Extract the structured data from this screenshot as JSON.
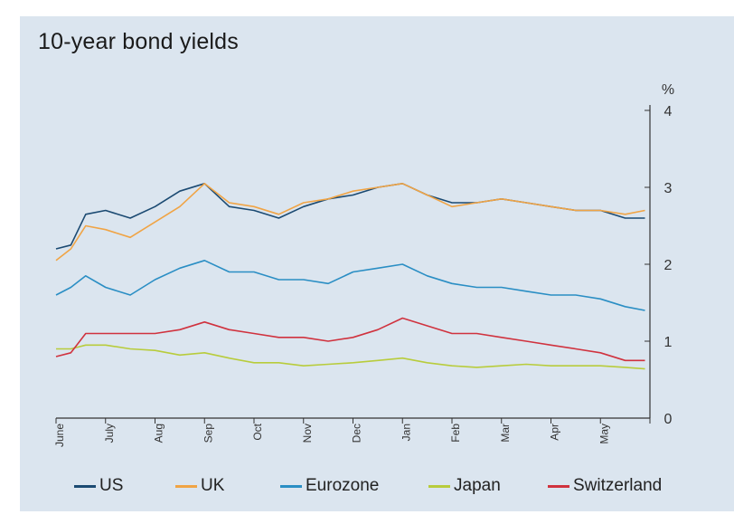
{
  "chart_data": {
    "type": "line",
    "title": "10-year bond yields",
    "ylabel": "%",
    "ylim": [
      0,
      4
    ],
    "yticks": [
      0,
      1,
      2,
      3,
      4
    ],
    "xlim": [
      0,
      12
    ],
    "month_labels": [
      "June",
      "July",
      "Aug",
      "Sep",
      "Oct",
      "Nov",
      "Dec",
      "Jan",
      "Feb",
      "Mar",
      "Apr",
      "May"
    ],
    "x": [
      0,
      0.3,
      0.6,
      1.0,
      1.5,
      2.0,
      2.5,
      3.0,
      3.5,
      4.0,
      4.5,
      5.0,
      5.5,
      6.0,
      6.5,
      7.0,
      7.5,
      8.0,
      8.5,
      9.0,
      9.5,
      10.0,
      10.5,
      11.0,
      11.5,
      11.9
    ],
    "series": [
      {
        "name": "US",
        "color": "#1b4a72",
        "values": [
          2.2,
          2.25,
          2.65,
          2.7,
          2.6,
          2.75,
          2.95,
          3.05,
          2.75,
          2.7,
          2.6,
          2.75,
          2.85,
          2.9,
          3.0,
          3.05,
          2.9,
          2.8,
          2.8,
          2.85,
          2.8,
          2.75,
          2.7,
          2.7,
          2.6,
          2.6
        ]
      },
      {
        "name": "UK",
        "color": "#f0a445",
        "values": [
          2.05,
          2.2,
          2.5,
          2.45,
          2.35,
          2.55,
          2.75,
          3.05,
          2.8,
          2.75,
          2.65,
          2.8,
          2.85,
          2.95,
          3.0,
          3.05,
          2.9,
          2.75,
          2.8,
          2.85,
          2.8,
          2.75,
          2.7,
          2.7,
          2.65,
          2.7
        ]
      },
      {
        "name": "Eurozone",
        "color": "#2a8ec4",
        "values": [
          1.6,
          1.7,
          1.85,
          1.7,
          1.6,
          1.8,
          1.95,
          2.05,
          1.9,
          1.9,
          1.8,
          1.8,
          1.75,
          1.9,
          1.95,
          2.0,
          1.85,
          1.75,
          1.7,
          1.7,
          1.65,
          1.6,
          1.6,
          1.55,
          1.45,
          1.4
        ]
      },
      {
        "name": "Japan",
        "color": "#b8cc3c",
        "values": [
          0.9,
          0.9,
          0.95,
          0.95,
          0.9,
          0.88,
          0.82,
          0.85,
          0.78,
          0.72,
          0.72,
          0.68,
          0.7,
          0.72,
          0.75,
          0.78,
          0.72,
          0.68,
          0.66,
          0.68,
          0.7,
          0.68,
          0.68,
          0.68,
          0.66,
          0.64
        ]
      },
      {
        "name": "Switzerland",
        "color": "#d0323e",
        "values": [
          0.8,
          0.85,
          1.1,
          1.1,
          1.1,
          1.1,
          1.15,
          1.25,
          1.15,
          1.1,
          1.05,
          1.05,
          1.0,
          1.05,
          1.15,
          1.3,
          1.2,
          1.1,
          1.1,
          1.05,
          1.0,
          0.95,
          0.9,
          0.85,
          0.75,
          0.75
        ]
      }
    ]
  }
}
